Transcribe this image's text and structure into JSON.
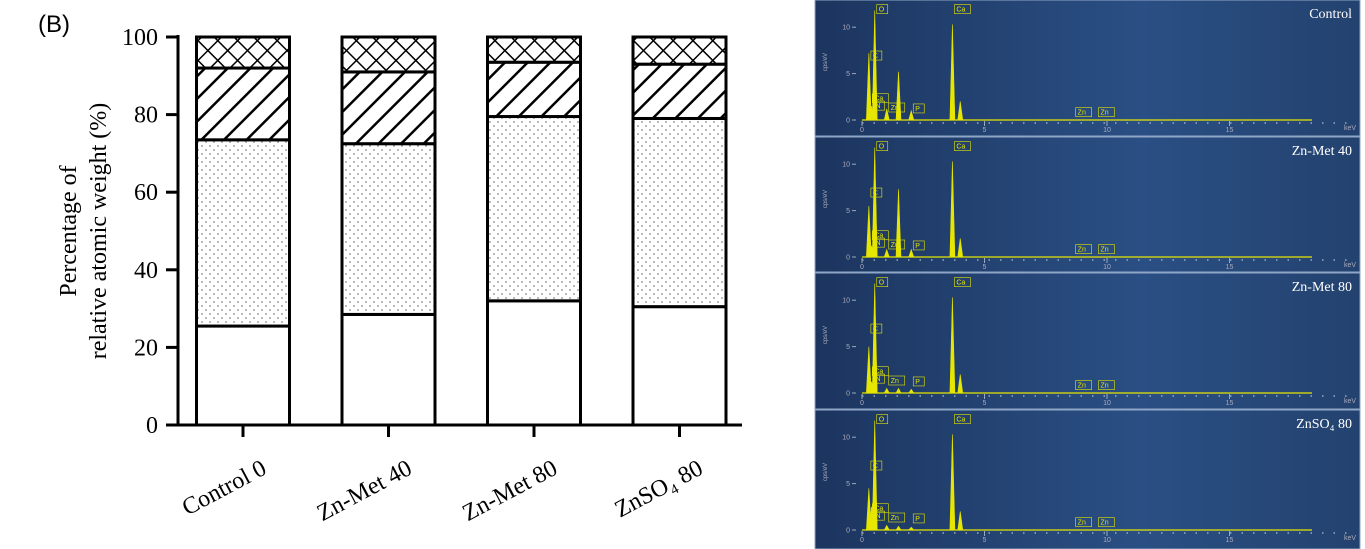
{
  "chart_data": [
    {
      "type": "stacked-bar",
      "panel_label": "(B)",
      "ylabel": [
        "Percentage of",
        "relative atomic weight (%)"
      ],
      "categories": [
        "Control 0",
        "Zn-Met 40",
        "Zn-Met 80",
        "ZnSO₄ 80"
      ],
      "series": [
        {
          "color": "#ffffff",
          "pattern": "blank",
          "values": [
            25.5,
            28.5,
            32,
            30.5
          ]
        },
        {
          "color": "#ffffff",
          "pattern": "dots",
          "values": [
            48,
            44,
            47.5,
            48.5
          ]
        },
        {
          "color": "#ffffff",
          "pattern": "diagonal",
          "values": [
            18.5,
            18.5,
            14,
            14
          ]
        },
        {
          "color": "#ffffff",
          "pattern": "crosshatch",
          "values": [
            8,
            9,
            6.5,
            7
          ]
        }
      ],
      "ylim": [
        0,
        100
      ],
      "yticks": [
        0,
        20,
        40,
        60,
        80,
        100
      ]
    },
    {
      "type": "spectrum",
      "title": "Control",
      "ylabel": "cps/eV",
      "xlabel": "keV",
      "color": "#e6e600",
      "x": [
        0.28,
        0.39,
        0.52,
        1.01,
        1.49,
        2.01,
        3.69,
        4.01
      ],
      "values": [
        7.2,
        1.5,
        11.8,
        1.2,
        5.2,
        1.0,
        10.3,
        2.0
      ],
      "labels": [
        "C",
        "Ca",
        "N",
        "O",
        "Zn",
        "P",
        "Ca",
        "Zn",
        "Zn"
      ],
      "label_kev": [
        0.28,
        0.34,
        0.39,
        0.52,
        1.01,
        2.01,
        3.69,
        8.64,
        9.57
      ],
      "xlim": [
        0,
        20
      ],
      "xticks": [
        0,
        5,
        10,
        15
      ],
      "ylim": [
        0,
        12.5
      ],
      "yticks": [
        0,
        5,
        10
      ]
    },
    {
      "type": "spectrum",
      "title": "Zn-Met 40",
      "ylabel": "cps/eV",
      "xlabel": "keV",
      "color": "#e6e600",
      "x": [
        0.28,
        0.39,
        0.52,
        1.01,
        1.49,
        2.01,
        3.69,
        4.01
      ],
      "values": [
        5.5,
        1.2,
        11.8,
        0.8,
        7.3,
        0.8,
        10.3,
        2.0
      ],
      "labels": [
        "C",
        "Ca",
        "N",
        "O",
        "Zn",
        "P",
        "Ca",
        "Zn",
        "Zn"
      ],
      "label_kev": [
        0.28,
        0.34,
        0.39,
        0.52,
        1.01,
        2.01,
        3.69,
        8.64,
        9.57
      ],
      "xlim": [
        0,
        20
      ],
      "xticks": [
        0,
        5,
        10,
        15
      ],
      "ylim": [
        0,
        12.5
      ],
      "yticks": [
        0,
        5,
        10
      ]
    },
    {
      "type": "spectrum",
      "title": "Zn-Met 80",
      "ylabel": "cps/eV",
      "xlabel": "keV",
      "color": "#e6e600",
      "x": [
        0.28,
        0.39,
        0.52,
        1.01,
        1.49,
        2.01,
        3.69,
        4.01
      ],
      "values": [
        5.0,
        1.2,
        11.8,
        0.5,
        0.5,
        0.4,
        10.3,
        2.0
      ],
      "labels": [
        "C",
        "Ca",
        "N",
        "O",
        "Zn",
        "P",
        "Ca",
        "Zn",
        "Zn"
      ],
      "label_kev": [
        0.28,
        0.34,
        0.39,
        0.52,
        1.01,
        2.01,
        3.69,
        8.64,
        9.57
      ],
      "xlim": [
        0,
        20
      ],
      "xticks": [
        0,
        5,
        10,
        15
      ],
      "ylim": [
        0,
        12.5
      ],
      "yticks": [
        0,
        5,
        10
      ]
    },
    {
      "type": "spectrum",
      "title": "ZnSO₄ 80",
      "ylabel": "cps/eV",
      "xlabel": "keV",
      "color": "#e6e600",
      "x": [
        0.28,
        0.39,
        0.52,
        1.01,
        1.49,
        2.01,
        3.69,
        4.01
      ],
      "values": [
        4.5,
        2.5,
        11.8,
        0.5,
        0.4,
        0.3,
        10.3,
        2.0
      ],
      "labels": [
        "C",
        "Ca",
        "N",
        "O",
        "Zn",
        "P",
        "Ca",
        "Zn",
        "Zn"
      ],
      "label_kev": [
        0.28,
        0.34,
        0.39,
        0.52,
        1.01,
        2.01,
        3.69,
        8.64,
        9.57
      ],
      "xlim": [
        0,
        20
      ],
      "xticks": [
        0,
        5,
        10,
        15
      ],
      "ylim": [
        0,
        12.5
      ],
      "yticks": [
        0,
        5,
        10
      ]
    }
  ]
}
